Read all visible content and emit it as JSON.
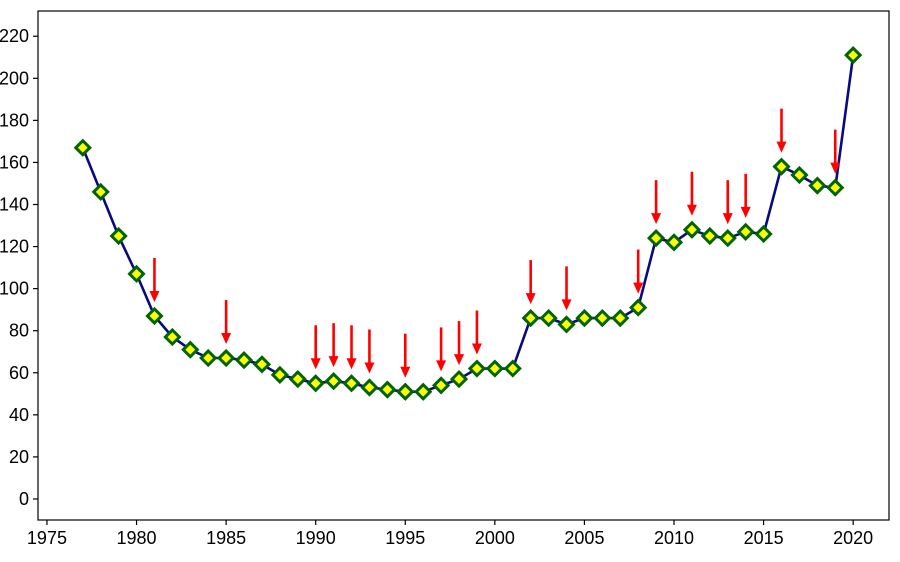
{
  "chart_data": {
    "type": "line",
    "title": "",
    "xlabel": "",
    "ylabel": "",
    "xlim": [
      1974.5,
      2022
    ],
    "ylim": [
      -10,
      232
    ],
    "grid": false,
    "x_ticks": [
      1975,
      1980,
      1985,
      1990,
      1995,
      2000,
      2005,
      2010,
      2015,
      2020
    ],
    "y_ticks": [
      0,
      20,
      40,
      60,
      80,
      100,
      120,
      140,
      160,
      180,
      200,
      220
    ],
    "x_tick_labels": [
      "1975",
      "1980",
      "1985",
      "1990",
      "1995",
      "2000",
      "2005",
      "2010",
      "2015",
      "2020"
    ],
    "y_tick_labels": [
      "0",
      "20",
      "40",
      "60",
      "80",
      "100",
      "120",
      "140",
      "160",
      "180",
      "200",
      "220"
    ],
    "series": [
      {
        "x": [
          1977,
          1978,
          1979,
          1980,
          1981,
          1982,
          1983,
          1984,
          1985,
          1986,
          1987,
          1988,
          1989,
          1990,
          1991,
          1992,
          1993,
          1994,
          1995,
          1996,
          1997,
          1998,
          1999,
          2000,
          2001,
          2002,
          2003,
          2004,
          2005,
          2006,
          2007,
          2008,
          2009,
          2010,
          2011,
          2012,
          2013,
          2014,
          2015,
          2016,
          2017,
          2018,
          2019,
          2020
        ],
        "values": [
          167,
          146,
          125,
          107,
          87,
          77,
          71,
          67,
          67,
          66,
          64,
          59,
          57,
          55,
          56,
          55,
          53,
          52,
          51,
          51,
          54,
          57,
          62,
          62,
          62,
          86,
          86,
          83,
          86,
          86,
          86,
          91,
          124,
          122,
          128,
          125,
          124,
          127,
          126,
          158,
          154,
          149,
          148,
          211
        ],
        "line_color": "#0a0a80",
        "marker": "diamond",
        "marker_face_color": "#ffff00",
        "marker_edge_color": "#006400"
      }
    ],
    "annotations": {
      "type": "arrows",
      "color": "#ff0000",
      "x": [
        1981,
        1985,
        1990,
        1991,
        1992,
        1993,
        1995,
        1997,
        1998,
        1999,
        2002,
        2004,
        2008,
        2009,
        2011,
        2013,
        2014,
        2016,
        2019
      ]
    }
  }
}
